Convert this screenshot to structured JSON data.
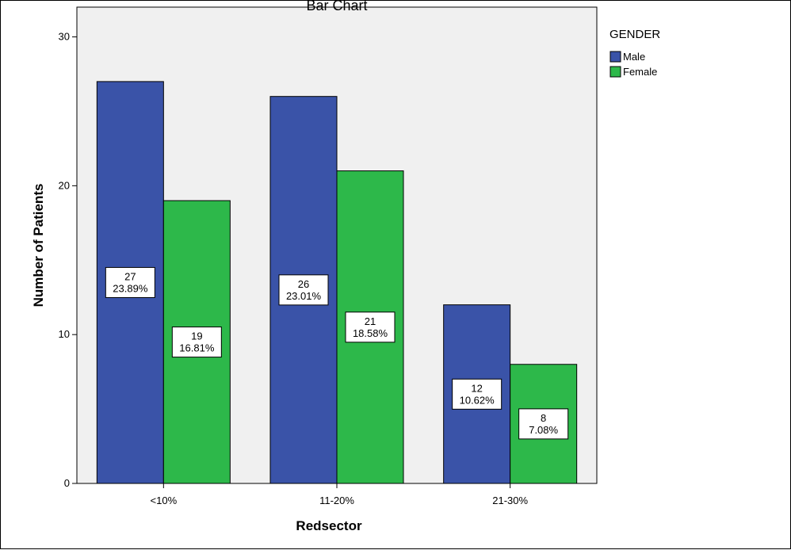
{
  "chart_data": {
    "type": "bar",
    "title": "Bar Chart",
    "xlabel": "Redsector",
    "ylabel": "Number of Patients",
    "categories": [
      "<10%",
      "11-20%",
      "21-30%"
    ],
    "ylim": [
      0,
      32
    ],
    "yticks": [
      0,
      10,
      20,
      30
    ],
    "legend": {
      "title": "GENDER",
      "position": "top-right"
    },
    "grid": false,
    "series": [
      {
        "name": "Male",
        "color": "#3a53a8",
        "values": [
          27,
          26,
          12
        ],
        "labels": [
          "23.89%",
          "23.01%",
          "10.62%"
        ]
      },
      {
        "name": "Female",
        "color": "#2db84a",
        "values": [
          19,
          21,
          8
        ],
        "labels": [
          "16.81%",
          "18.58%",
          "7.08%"
        ]
      }
    ],
    "plot_background": "#f0f0f0"
  }
}
